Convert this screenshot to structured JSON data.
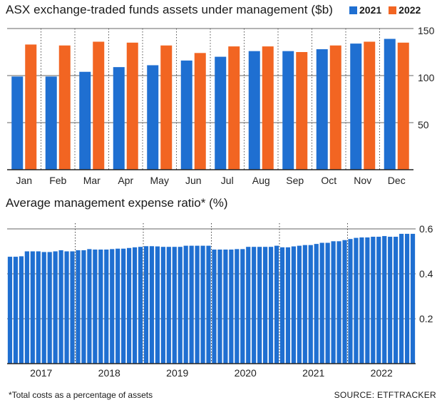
{
  "colors": {
    "c2021": "#1f6fd1",
    "c2022": "#f26522",
    "grid": "#333333",
    "axis": "#222222"
  },
  "chart_data": [
    {
      "type": "bar",
      "title": "ASX exchange-traded funds assets under management ($b)",
      "categories": [
        "Jan",
        "Feb",
        "Mar",
        "Apr",
        "May",
        "Jun",
        "Jul",
        "Aug",
        "Sep",
        "Oct",
        "Nov",
        "Dec"
      ],
      "series": [
        {
          "name": "2021",
          "values": [
            99,
            99,
            104,
            109,
            111,
            116,
            120,
            126,
            126,
            128,
            134,
            139
          ]
        },
        {
          "name": "2022",
          "values": [
            133,
            132,
            136,
            135,
            132,
            124,
            131,
            131,
            125,
            132,
            136,
            135
          ]
        }
      ],
      "ylim": [
        0,
        150
      ],
      "yticks": [
        "50",
        "100",
        "150"
      ],
      "ytick_values": [
        50,
        100,
        150
      ],
      "legend": "top-right",
      "grid": "horizontal and dotted vertical"
    },
    {
      "type": "bar",
      "title": "Average management expense ratio* (%)",
      "x_labels": [
        "2017",
        "2018",
        "2019",
        "2020",
        "2021",
        "2022"
      ],
      "values": [
        0.476,
        0.476,
        0.478,
        0.5,
        0.5,
        0.5,
        0.497,
        0.497,
        0.5,
        0.505,
        0.5,
        0.5,
        0.505,
        0.505,
        0.51,
        0.508,
        0.508,
        0.508,
        0.51,
        0.512,
        0.512,
        0.515,
        0.518,
        0.52,
        0.523,
        0.523,
        0.522,
        0.52,
        0.52,
        0.52,
        0.52,
        0.525,
        0.525,
        0.525,
        0.525,
        0.525,
        0.508,
        0.508,
        0.508,
        0.508,
        0.51,
        0.51,
        0.52,
        0.52,
        0.52,
        0.52,
        0.52,
        0.525,
        0.518,
        0.518,
        0.522,
        0.525,
        0.528,
        0.528,
        0.533,
        0.538,
        0.538,
        0.545,
        0.545,
        0.55,
        0.555,
        0.56,
        0.562,
        0.562,
        0.565,
        0.565,
        0.568,
        0.565,
        0.565,
        0.578,
        0.578,
        0.578
      ],
      "ylim": [
        0,
        0.6
      ],
      "yticks": [
        "0.2",
        "0.4",
        "0.6"
      ],
      "ytick_values": [
        0.2,
        0.4,
        0.6
      ],
      "grid": "horizontal and dotted vertical"
    }
  ],
  "footnote": "*Total costs as a percentage of assets",
  "source": "SOURCE: ETFTRACKER"
}
